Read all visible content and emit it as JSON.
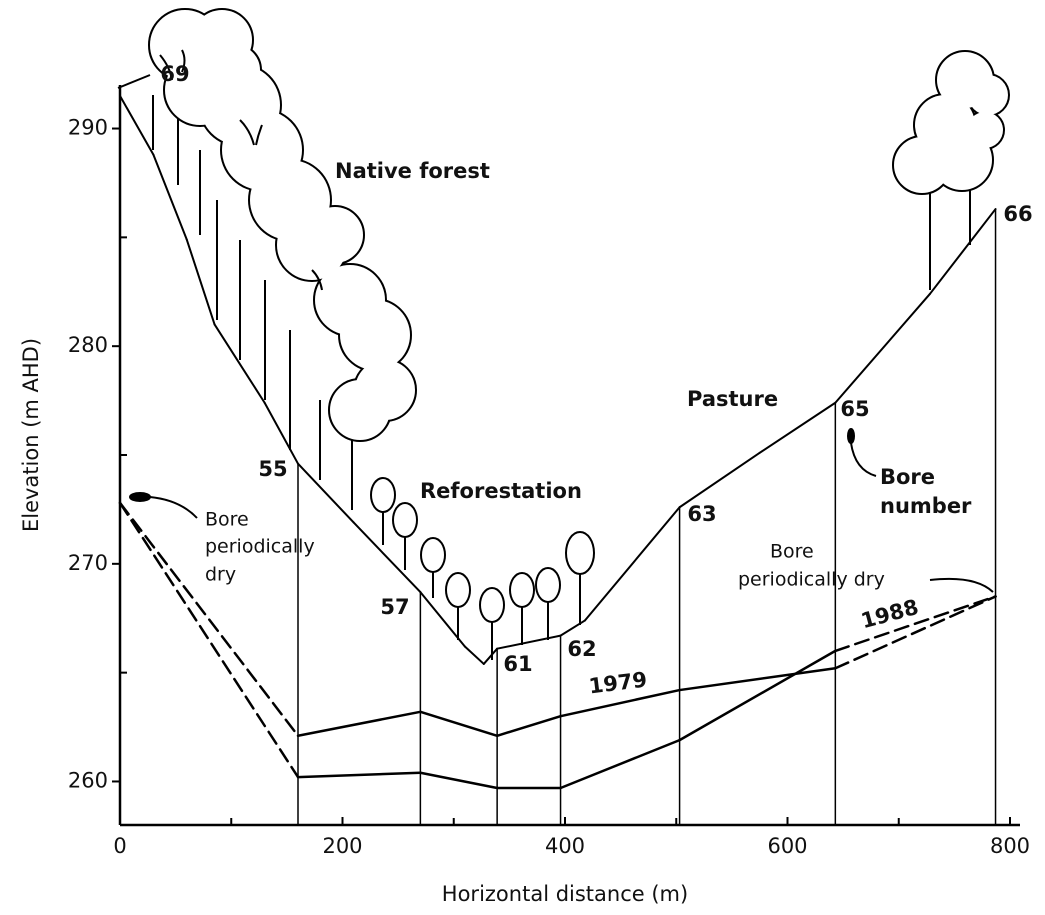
{
  "chart_data": {
    "type": "line",
    "x_label": "Horizontal distance (m)",
    "y_label": "Elevation (m AHD)",
    "xlim": [
      0,
      800
    ],
    "ylim": [
      258,
      292
    ],
    "xticks": [
      0,
      200,
      400,
      600,
      800
    ],
    "yticks": [
      260,
      270,
      280,
      290
    ],
    "xminorticks": [
      100,
      300,
      500,
      700
    ],
    "yminorticks": [
      265,
      275,
      285
    ],
    "series": [
      {
        "color": "#000",
        "dashed_segments": [],
        "x": [
          0,
          30,
          60,
          85,
          130,
          160,
          210,
          270,
          310,
          327,
          339,
          396,
          418,
          503,
          575,
          643,
          728,
          787
        ],
        "values": [
          291.5,
          288.8,
          284.9,
          281.0,
          277.4,
          274.6,
          271.9,
          268.7,
          266.2,
          265.4,
          266.1,
          266.7,
          267.4,
          272.6,
          275.1,
          277.4,
          282.4,
          286.3
        ]
      },
      {
        "name": "1979",
        "color": "#000",
        "dashed_segments": [
          0,
          6
        ],
        "x": [
          0,
          160,
          270,
          339,
          396,
          503,
          643,
          787
        ],
        "values": [
          272.8,
          262.1,
          263.2,
          262.1,
          263.0,
          264.2,
          265.2,
          268.5
        ]
      },
      {
        "name": "1988",
        "color": "#000",
        "dashed_segments": [
          0,
          6
        ],
        "x": [
          0,
          160,
          270,
          339,
          396,
          503,
          643,
          787
        ],
        "values": [
          272.8,
          260.2,
          260.4,
          259.7,
          259.7,
          261.9,
          266.0,
          268.5
        ]
      }
    ],
    "bores": [
      {
        "label": "69",
        "x": 0
      },
      {
        "label": "55",
        "x": 160
      },
      {
        "label": "57",
        "x": 270
      },
      {
        "label": "61",
        "x": 339
      },
      {
        "label": "62",
        "x": 396
      },
      {
        "label": "63",
        "x": 503
      },
      {
        "label": "65",
        "x": 643
      },
      {
        "label": "66",
        "x": 787
      }
    ],
    "regions": [
      "Native forest",
      "Reforestation",
      "Pasture"
    ],
    "annotations": [
      [
        "Bore",
        "periodically",
        "dry"
      ],
      [
        "Bore",
        "periodically dry"
      ],
      [
        "Bore",
        "number"
      ]
    ]
  }
}
